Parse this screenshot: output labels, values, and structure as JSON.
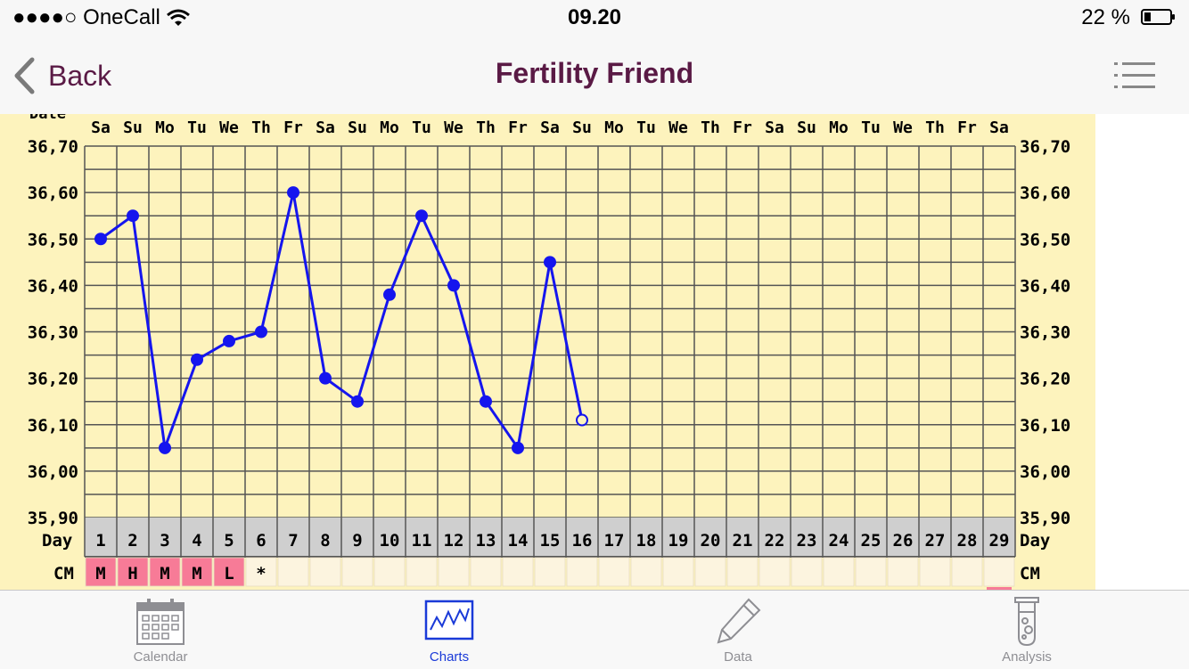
{
  "status_bar": {
    "carrier": "●●●●○ OneCall",
    "time": "09.20",
    "battery": "22 %"
  },
  "nav": {
    "back_label": "Back",
    "title": "Fertility Friend"
  },
  "chart_data": {
    "type": "line",
    "title": "",
    "row_labels": {
      "date": "Date",
      "day": "Day",
      "cm": "CM"
    },
    "weekdays": [
      "Sa",
      "Su",
      "Mo",
      "Tu",
      "We",
      "Th",
      "Fr",
      "Sa",
      "Su",
      "Mo",
      "Tu",
      "We",
      "Th",
      "Fr",
      "Sa",
      "Su",
      "Mo",
      "Tu",
      "We",
      "Th",
      "Fr",
      "Sa",
      "Su",
      "Mo",
      "Tu",
      "We",
      "Th",
      "Fr",
      "Sa"
    ],
    "days": [
      1,
      2,
      3,
      4,
      5,
      6,
      7,
      8,
      9,
      10,
      11,
      12,
      13,
      14,
      15,
      16,
      17,
      18,
      19,
      20,
      21,
      22,
      23,
      24,
      25,
      26,
      27,
      28,
      29
    ],
    "y_ticks": [
      "36,70",
      "36,60",
      "36,50",
      "36,40",
      "36,30",
      "36,20",
      "36,10",
      "36,00",
      "35,90"
    ],
    "ylim": [
      35.9,
      36.7
    ],
    "series": [
      {
        "values": [
          36.5,
          36.55,
          36.05,
          36.24,
          36.28,
          36.3,
          36.6,
          36.2,
          36.15,
          36.38,
          36.55,
          36.4,
          36.15,
          36.05,
          36.45,
          36.11
        ],
        "open_points": [
          16
        ]
      }
    ],
    "cm": [
      "M",
      "H",
      "M",
      "M",
      "L",
      "*",
      "",
      "",
      "",
      "",
      "",
      "",
      "",
      "",
      "",
      "",
      "",
      "",
      "",
      "",
      "",
      "",
      "",
      "",
      "",
      "",
      "",
      "",
      ""
    ],
    "colors": {
      "plot_bg": "#fdf3bd",
      "grid": "#555555",
      "line": "#1515ee",
      "day_row": "#cfcfcf",
      "cm_fill": "#f77b97",
      "cm_empty": "#fcf4df"
    },
    "grid": true
  },
  "tabs": [
    {
      "label": "Calendar",
      "icon": "calendar-icon"
    },
    {
      "label": "Charts",
      "icon": "chart-icon"
    },
    {
      "label": "Data",
      "icon": "pencil-icon"
    },
    {
      "label": "Analysis",
      "icon": "test-tube-icon"
    }
  ]
}
